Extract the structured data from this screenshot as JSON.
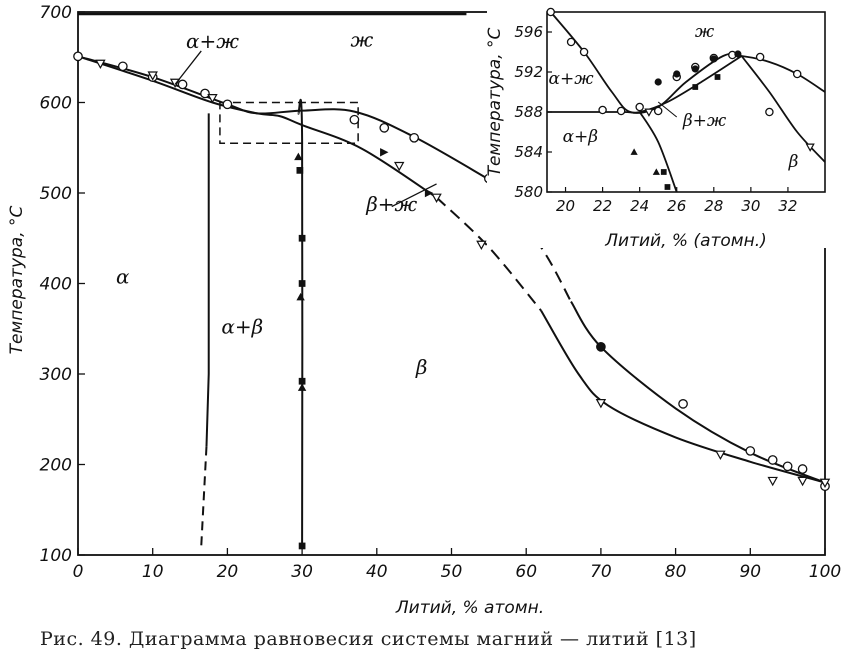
{
  "caption": "Рис. 49. Диаграмма равновесия системы магний — литий [13]",
  "chart_data": [
    {
      "type": "line",
      "xlabel": "Литий, % атомн.",
      "ylabel": "Температура, °С",
      "xlim": [
        0,
        100
      ],
      "ylim": [
        100,
        700
      ],
      "x_ticks": [
        0,
        10,
        20,
        30,
        40,
        50,
        60,
        70,
        80,
        90,
        100
      ],
      "y_ticks": [
        100,
        200,
        300,
        400,
        500,
        600,
        700
      ],
      "regions": [
        "α",
        "ж",
        "α+ж",
        "α+β",
        "β",
        "β+ж"
      ],
      "series": [
        {
          "values": [
            [
              0,
              651
            ],
            [
              10,
              628
            ],
            [
              20,
              598
            ],
            [
              24,
              588
            ],
            [
              30,
              591
            ],
            [
              37,
              590
            ],
            [
              45,
              562
            ],
            [
              55,
              515
            ],
            [
              62,
              440
            ],
            [
              66,
              380
            ],
            [
              70,
              330
            ],
            [
              80,
              262
            ],
            [
              90,
              213
            ],
            [
              100,
              180
            ]
          ]
        },
        {
          "values": [
            [
              0,
              651
            ],
            [
              10,
              624
            ],
            [
              18,
              600
            ],
            [
              24,
              588
            ],
            [
              27,
              585
            ],
            [
              30,
              575
            ],
            [
              38,
              549
            ],
            [
              48,
              495
            ],
            [
              55,
              440
            ],
            [
              62,
              370
            ],
            [
              67,
              300
            ],
            [
              71,
              265
            ],
            [
              80,
              230
            ],
            [
              90,
              203
            ],
            [
              100,
              180
            ]
          ]
        },
        {
          "values": [
            [
              17.5,
              588
            ],
            [
              17.5,
              300
            ],
            [
              17.2,
              220
            ],
            [
              16.5,
              110
            ]
          ]
        },
        {
          "values": [
            [
              29.5,
              588
            ],
            [
              30,
              560
            ],
            [
              30,
              110
            ]
          ]
        }
      ],
      "markers": {
        "circles": [
          [
            0,
            651
          ],
          [
            6,
            640
          ],
          [
            10,
            628
          ],
          [
            14,
            620
          ],
          [
            17,
            610
          ],
          [
            20,
            598
          ],
          [
            37,
            581
          ],
          [
            41,
            572
          ],
          [
            45,
            561
          ],
          [
            55,
            516
          ],
          [
            70,
            330
          ],
          [
            81,
            267
          ],
          [
            90,
            215
          ],
          [
            93,
            205
          ],
          [
            95,
            198
          ],
          [
            97,
            195
          ],
          [
            100,
            176
          ]
        ],
        "triangles_down": [
          [
            3,
            643
          ],
          [
            10,
            630
          ],
          [
            13,
            622
          ],
          [
            18,
            605
          ],
          [
            43,
            530
          ],
          [
            48,
            495
          ],
          [
            54,
            443
          ],
          [
            70,
            268
          ],
          [
            86,
            211
          ],
          [
            93,
            182
          ],
          [
            97,
            182
          ],
          [
            100,
            180
          ]
        ],
        "triangles_up": [
          [
            29.5,
            540
          ],
          [
            29.8,
            385
          ],
          [
            30,
            285
          ]
        ],
        "squares": [
          [
            29.7,
            525
          ],
          [
            30,
            450
          ],
          [
            30,
            400
          ],
          [
            30,
            292
          ],
          [
            30,
            110
          ]
        ],
        "filled_circles": [
          [
            70,
            330
          ]
        ],
        "filled_triangles_right": [
          [
            41,
            545
          ],
          [
            47,
            500
          ]
        ]
      }
    },
    {
      "type": "line",
      "xlabel": "Литий, % (атомн.)",
      "ylabel": "Температура, °С",
      "xlim": [
        19,
        34
      ],
      "ylim": [
        580,
        598
      ],
      "x_ticks": [
        20,
        22,
        24,
        26,
        28,
        30,
        32
      ],
      "y_ticks": [
        580,
        584,
        588,
        592,
        596
      ],
      "regions": [
        "ж",
        "α+ж",
        "α+β",
        "β+ж",
        "β"
      ],
      "series": [
        {
          "values": [
            [
              19.2,
              598
            ],
            [
              21,
              594
            ],
            [
              22.5,
              590
            ],
            [
              23.5,
              588
            ],
            [
              25,
              588.5
            ],
            [
              26.5,
              591
            ],
            [
              28.5,
              593.6
            ],
            [
              29.5,
              593.6
            ],
            [
              31,
              593
            ],
            [
              32.5,
              591.8
            ],
            [
              34,
              590
            ]
          ]
        },
        {
          "values": [
            [
              19,
              588
            ],
            [
              23,
              588
            ],
            [
              24,
              588
            ],
            [
              25.5,
              589
            ],
            [
              27.5,
              591.2
            ],
            [
              29.5,
              593.6
            ]
          ]
        },
        {
          "values": [
            [
              24,
              588
            ],
            [
              25,
              585
            ],
            [
              26,
              580
            ]
          ]
        },
        {
          "values": [
            [
              29.5,
              593.6
            ],
            [
              31,
              590
            ],
            [
              32.5,
              586
            ],
            [
              34,
              583
            ]
          ]
        }
      ],
      "markers": {
        "circles": [
          [
            19.2,
            598
          ],
          [
            20.3,
            595
          ],
          [
            21,
            594
          ],
          [
            22,
            588.2
          ],
          [
            23,
            588.1
          ],
          [
            24,
            588.5
          ],
          [
            25,
            588.1
          ],
          [
            26,
            591.5
          ],
          [
            27,
            592.5
          ],
          [
            28,
            593.4
          ],
          [
            29,
            593.7
          ],
          [
            30.5,
            593.5
          ],
          [
            31,
            588
          ],
          [
            32.5,
            591.8
          ]
        ],
        "filled_circles": [
          [
            25,
            591
          ],
          [
            26,
            591.8
          ],
          [
            27,
            592.3
          ],
          [
            28,
            593.3
          ],
          [
            29.3,
            593.8
          ]
        ],
        "triangles_up": [
          [
            23.7,
            584
          ],
          [
            24.9,
            582
          ]
        ],
        "squares": [
          [
            25.3,
            582
          ],
          [
            25.5,
            580.5
          ],
          [
            27,
            590.5
          ],
          [
            28.2,
            591.5
          ]
        ],
        "triangles_down": [
          [
            24.5,
            588
          ],
          [
            33.2,
            584.5
          ]
        ]
      }
    }
  ]
}
